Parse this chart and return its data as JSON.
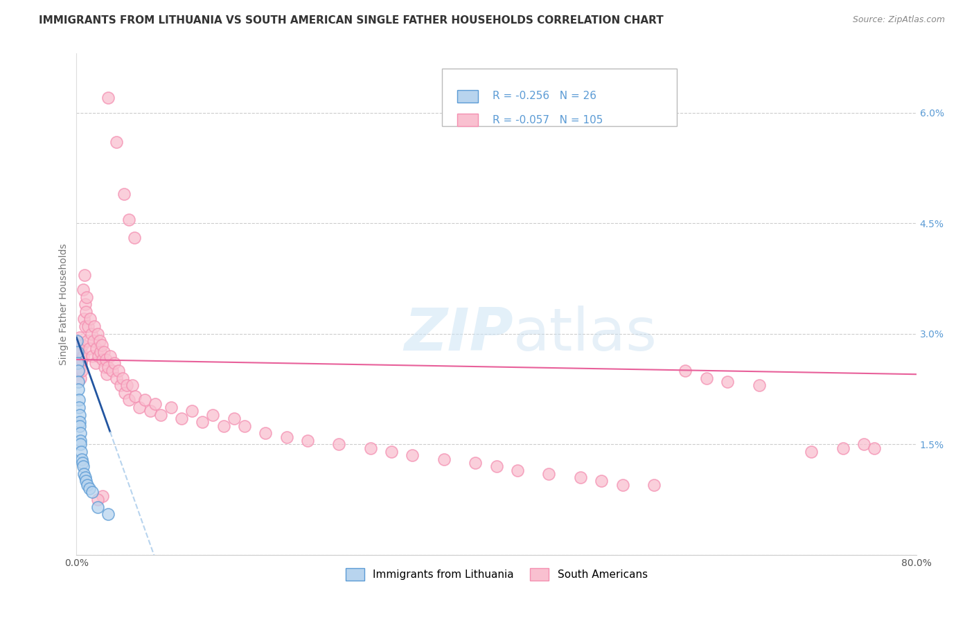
{
  "title": "IMMIGRANTS FROM LITHUANIA VS SOUTH AMERICAN SINGLE FATHER HOUSEHOLDS CORRELATION CHART",
  "source": "Source: ZipAtlas.com",
  "ylabel": "Single Father Households",
  "xlim": [
    0.0,
    0.8
  ],
  "ylim": [
    0.0,
    0.068
  ],
  "xticks": [
    0.0,
    0.1,
    0.2,
    0.3,
    0.4,
    0.5,
    0.6,
    0.7,
    0.8
  ],
  "ytick_positions": [
    0.0,
    0.015,
    0.03,
    0.045,
    0.06
  ],
  "ytick_labels": [
    "",
    "1.5%",
    "3.0%",
    "4.5%",
    "6.0%"
  ],
  "blue_color": "#5b9bd5",
  "pink_color": "#f48fb1",
  "blue_scatter_face": "#b8d4ee",
  "pink_scatter_face": "#f9c0d0",
  "blue_line_color": "#2255a0",
  "pink_line_color": "#e8609a",
  "blue_dashed_color": "#b8d4ee",
  "legend1_R": "-0.256",
  "legend1_N": "26",
  "legend2_R": "-0.057",
  "legend2_N": "105",
  "watermark": "ZIPatlas"
}
